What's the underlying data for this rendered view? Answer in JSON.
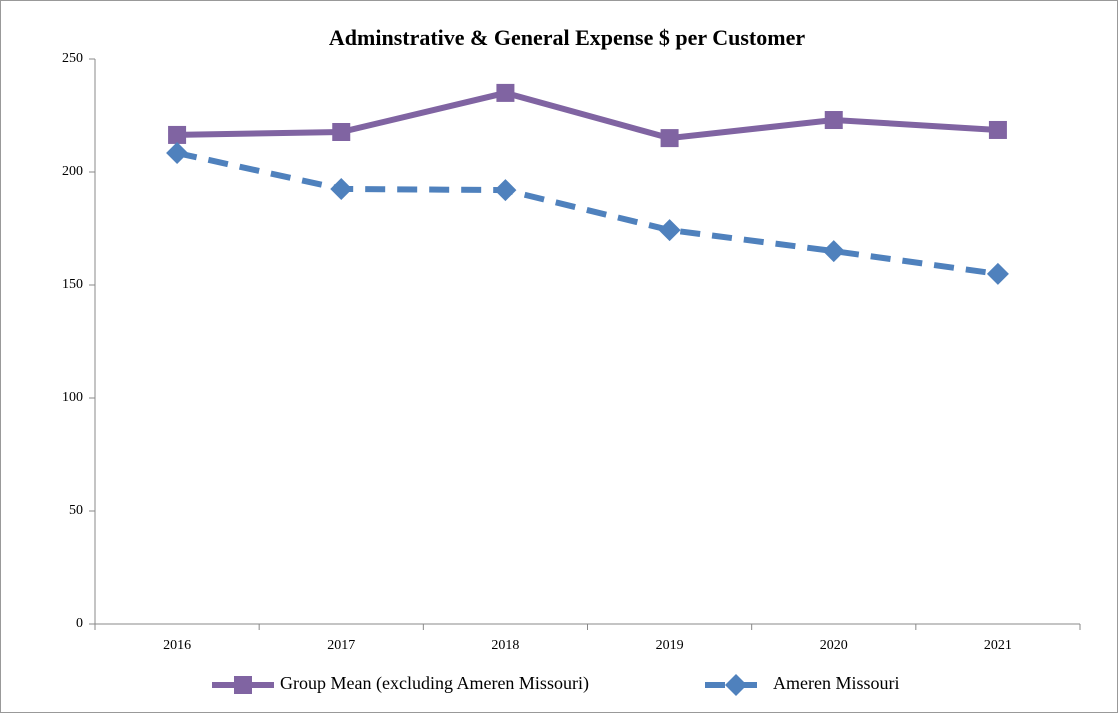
{
  "chart_data": {
    "type": "line",
    "title": "Adminstrative & General Expense $ per Customer",
    "categories": [
      "2016",
      "2017",
      "2018",
      "2019",
      "2020",
      "2021"
    ],
    "series": [
      {
        "name": "Group Mean (excluding Ameren Missouri)",
        "color": "#8064a2",
        "marker": "square",
        "line_style": "solid",
        "values": [
          216.4,
          217.7,
          235,
          215,
          223,
          218.6
        ]
      },
      {
        "name": "Ameren Missouri",
        "color": "#4f81bd",
        "marker": "diamond",
        "line_style": "dashed",
        "values": [
          208.4,
          192.5,
          192,
          174.3,
          165,
          154.9
        ]
      }
    ],
    "ylim": [
      0,
      250
    ],
    "yticks": [
      0,
      50,
      100,
      150,
      200,
      250
    ],
    "grid": false,
    "legend": "bottom"
  }
}
